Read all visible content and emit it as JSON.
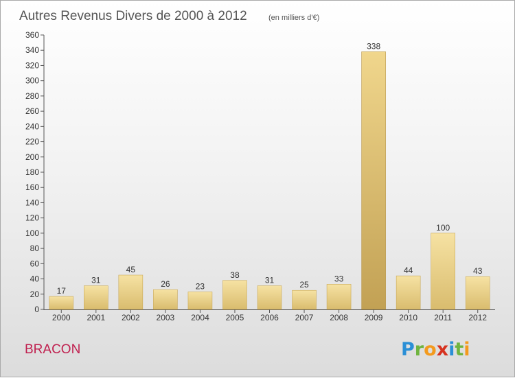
{
  "header": {
    "title": "Autres Revenus Divers de 2000 à 2012",
    "unit": "(en milliers d'€)"
  },
  "footer": {
    "commune": "BRACON",
    "logo_letters": [
      "P",
      "r",
      "o",
      "x",
      "i",
      "t",
      "i"
    ],
    "logo_colors": [
      "#2a8fd6",
      "#6fb43f",
      "#f39a1d",
      "#d6321f",
      "#2a8fd6",
      "#6fb43f",
      "#f39a1d"
    ]
  },
  "chart_data": {
    "type": "bar",
    "title": "Autres Revenus Divers de 2000 à 2012",
    "subtitle": "(en milliers d'€)",
    "categories": [
      "2000",
      "2001",
      "2002",
      "2003",
      "2004",
      "2005",
      "2006",
      "2007",
      "2008",
      "2009",
      "2010",
      "2011",
      "2012"
    ],
    "values": [
      17,
      31,
      45,
      26,
      23,
      38,
      31,
      25,
      33,
      338,
      44,
      100,
      43
    ],
    "value_labels": [
      "17",
      "31",
      "45",
      "26",
      "23",
      "38",
      "31",
      "25",
      "33",
      "338",
      "44",
      "100",
      "43"
    ],
    "yticks": [
      "0",
      "20",
      "40",
      "60",
      "80",
      "100",
      "120",
      "140",
      "160",
      "180",
      "200",
      "220",
      "240",
      "260",
      "280",
      "300",
      "320",
      "340",
      "360"
    ],
    "ylim": [
      0,
      360
    ],
    "xlabel": "",
    "ylabel": "",
    "grid": false,
    "highlight_index": 9,
    "colors": {
      "bar": "#f0d68c",
      "bar_dark": "#c9a95a",
      "highlight": "#d7bc72",
      "highlight_dark": "#b79547"
    }
  }
}
